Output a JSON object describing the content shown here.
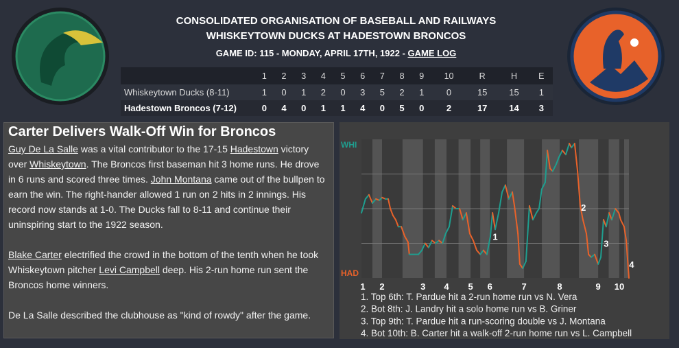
{
  "header": {
    "league": "CONSOLIDATED ORGANISATION OF BASEBALL AND RAILWAYS",
    "matchup": "WHISKEYTOWN DUCKS AT HADESTOWN BRONCOS",
    "game_info": "GAME ID: 115 - MONDAY, APRIL 17TH, 1922 - ",
    "game_log": "GAME LOG"
  },
  "linescore": {
    "columns": [
      "1",
      "2",
      "3",
      "4",
      "5",
      "6",
      "7",
      "8",
      "9",
      "10",
      "R",
      "H",
      "E"
    ],
    "rows": [
      {
        "team": "Whiskeytown Ducks (8-11)",
        "cells": [
          1,
          0,
          1,
          2,
          0,
          3,
          5,
          2,
          1,
          0,
          15,
          15,
          1
        ]
      },
      {
        "team": "Hadestown Broncos (7-12)",
        "cells": [
          0,
          4,
          0,
          1,
          1,
          4,
          0,
          5,
          0,
          2,
          17,
          14,
          3
        ]
      }
    ]
  },
  "story": {
    "headline": "Carter Delivers Walk-Off Win for Broncos",
    "paragraphs": [
      [
        {
          "text": "Guy De La Salle",
          "link": true
        },
        {
          "text": " was a vital contributor to the 17-15 "
        },
        {
          "text": "Hadestown",
          "link": true
        },
        {
          "text": " victory over "
        },
        {
          "text": "Whiskeytown",
          "link": true
        },
        {
          "text": ". The Broncos first baseman hit 3 home runs. He drove in 6 runs and scored three times. "
        },
        {
          "text": "John Montana",
          "link": true
        },
        {
          "text": " came out of the bullpen to earn the win. The right-hander allowed 1 run on 2 hits in 2 innings. His record now stands at 1-0. The Ducks fall to 8-11 and continue their uninspiring start to the 1922 season."
        }
      ],
      [
        {
          "text": "Blake Carter",
          "link": true
        },
        {
          "text": " electrified the crowd in the bottom of the tenth when he took Whiskeytown pitcher "
        },
        {
          "text": "Levi Campbell",
          "link": true
        },
        {
          "text": " deep. His 2-run home run sent the Broncos home winners."
        }
      ],
      [
        {
          "text": "De La Salle described the clubhouse as \"kind of rowdy\" after the game."
        }
      ]
    ]
  },
  "chart_data": {
    "type": "line",
    "top_label": "WHI",
    "bottom_label": "HAD",
    "up_color": "#1f9e8f",
    "down_color": "#e8622a",
    "xlim": [
      0,
      100
    ],
    "ylim": [
      0,
      100
    ],
    "gridlines": [
      25,
      50,
      75
    ],
    "innings": [
      "1",
      "2",
      "3",
      "4",
      "5",
      "6",
      "7",
      "8",
      "9",
      "10"
    ],
    "inning_x": [
      0.5,
      7.7,
      23,
      31.8,
      40.8,
      48,
      60.8,
      74.1,
      88.5,
      96.4
    ],
    "x": [
      0,
      1.5,
      2.8,
      4.1,
      5.4,
      6.7,
      7.7,
      9,
      10,
      10.8,
      11.8,
      12.8,
      13.8,
      14.9,
      16.2,
      17.4,
      17.9,
      21.3,
      22.6,
      23.8,
      25.1,
      26.4,
      27.7,
      29,
      30.3,
      31.5,
      32.8,
      34.1,
      35.4,
      36.7,
      37.9,
      39.2,
      40.5,
      41.8,
      43.1,
      44.4,
      45.6,
      46.9,
      48.2,
      49,
      50,
      51.3,
      52.6,
      53.8,
      55.1,
      56.4,
      57.2,
      58.5,
      59.2,
      60.3,
      61.5,
      62.8,
      64.1,
      65.4,
      66.4,
      67.4,
      68.7,
      69.5,
      70.5,
      71.5,
      72.8,
      73.8,
      75.1,
      76.4,
      77.7,
      78.5,
      79.7,
      80.8,
      81.8,
      82.8,
      84.1,
      84.9,
      85.9,
      87.2,
      88.5,
      89.5,
      90.5,
      91.5,
      92.6,
      93.6,
      94.9,
      96.2,
      96.9,
      98.2,
      99,
      100
    ],
    "values": [
      47,
      57,
      60,
      54,
      57,
      56,
      58,
      57,
      57,
      50,
      45,
      42,
      37,
      37,
      30,
      26,
      17,
      17,
      20,
      25,
      22,
      27,
      25,
      27,
      25,
      32,
      37,
      52,
      50,
      50,
      42,
      47,
      32,
      27,
      20,
      17,
      20,
      17,
      30,
      47,
      35,
      47,
      62,
      67,
      57,
      62,
      52,
      32,
      10,
      7,
      12,
      52,
      42,
      47,
      50,
      64,
      69,
      92,
      79,
      77,
      82,
      87,
      92,
      89,
      97,
      94,
      97,
      77,
      52,
      42,
      32,
      17,
      15,
      17,
      10,
      15,
      42,
      37,
      47,
      42,
      50,
      47,
      42,
      37,
      27,
      0
    ],
    "annotations": [
      {
        "text": "1",
        "x": 50,
        "y": 30
      },
      {
        "text": "2",
        "x": 83,
        "y": 51
      },
      {
        "text": "3",
        "x": 91.5,
        "y": 25
      },
      {
        "text": "4",
        "x": 101,
        "y": 10
      }
    ],
    "notes": [
      "1. Top 6th: T. Pardue hit a 2-run home run vs N. Vera",
      "2. Bot 8th: J. Landry hit a solo home run vs B. Griner",
      "3. Top 9th: T. Pardue hit a run-scoring double vs J. Montana",
      "4. Bot 10th: B. Carter hit a walk-off 2-run home run vs L. Campbell"
    ]
  }
}
